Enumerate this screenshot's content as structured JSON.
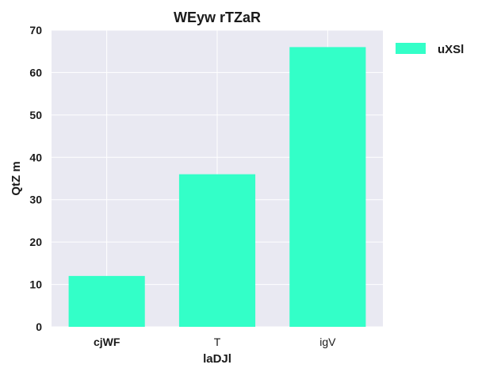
{
  "chart_data": {
    "type": "bar",
    "title": "WEyw rTZaR",
    "xlabel": "laDJl",
    "ylabel": "QtZ m",
    "categories": [
      "cjWF",
      "T",
      "igV"
    ],
    "category_bold": [
      true,
      false,
      false
    ],
    "series": [
      {
        "name": "uXSl",
        "values": [
          12,
          36,
          66
        ],
        "color": "#33ffc8"
      }
    ],
    "ylim": [
      0,
      70
    ],
    "yticks": [
      "0",
      "10",
      "20",
      "30",
      "40",
      "50",
      "60",
      "70"
    ],
    "grid": true,
    "legend_position": "outside-top-right",
    "plot_background": "#e9e9f2",
    "grid_color": "#ffffff"
  }
}
